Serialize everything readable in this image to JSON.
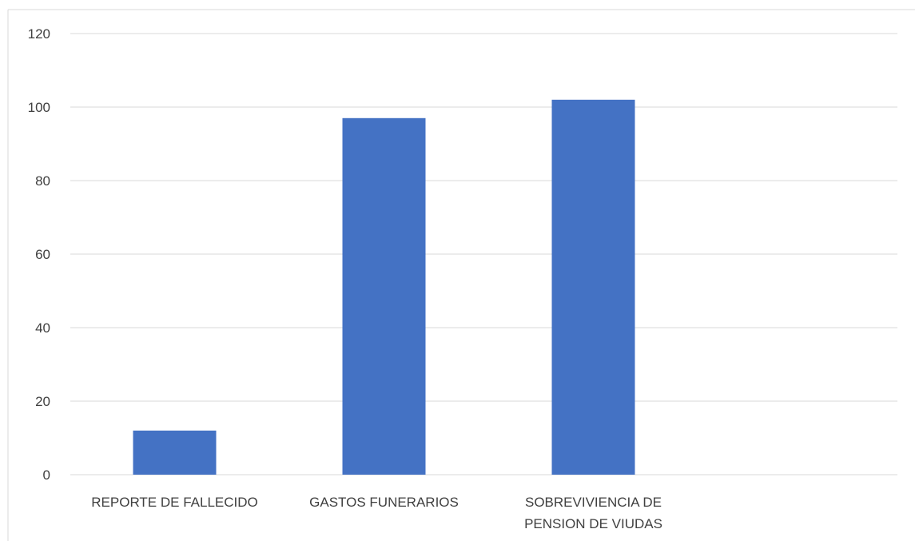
{
  "chart_data": {
    "type": "bar",
    "categories": [
      [
        "REPORTE DE FALLECIDO"
      ],
      [
        "GASTOS FUNERARIOS"
      ],
      [
        "SOBREVIVIENCIA DE",
        "PENSION DE VIUDAS"
      ]
    ],
    "values": [
      12,
      97,
      102
    ],
    "title": "",
    "xlabel": "",
    "ylabel": "",
    "ylim": [
      0,
      120
    ],
    "yticks": [
      0,
      20,
      40,
      60,
      80,
      100,
      120
    ],
    "grid": true,
    "legend": "none",
    "colors": {
      "bar": "#4472C4",
      "grid": "#D9D9D9",
      "text": "#404040",
      "frame": "#D9D9D9"
    }
  }
}
